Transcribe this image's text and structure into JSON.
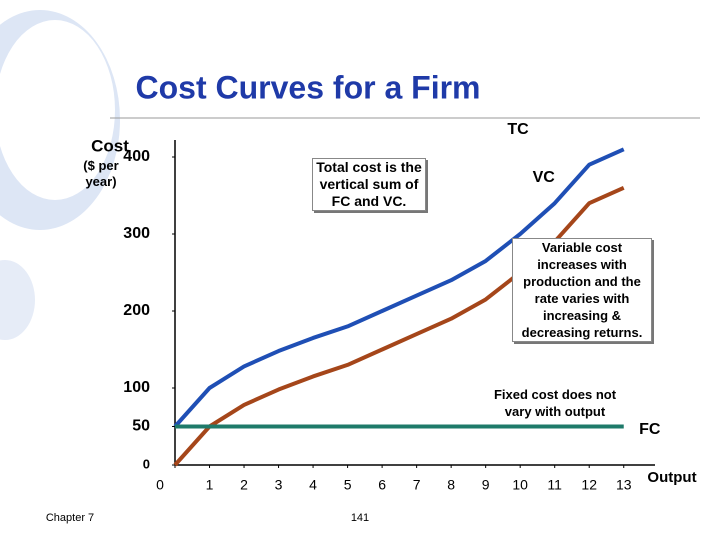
{
  "chart_data": {
    "type": "line",
    "title": "Cost Curves for a Firm",
    "y_label": "Cost",
    "y_unit": "($ per year)",
    "x_label": "Output",
    "x": [
      0,
      1,
      2,
      3,
      4,
      5,
      6,
      7,
      8,
      9,
      10,
      11,
      12,
      13
    ],
    "series": [
      {
        "name": "TC",
        "color": "#1f4fb5",
        "values": [
          50,
          100,
          128,
          148,
          165,
          180,
          200,
          220,
          240,
          265,
          300,
          340,
          390,
          410
        ]
      },
      {
        "name": "VC",
        "color": "#a5461a",
        "values": [
          0,
          50,
          78,
          98,
          115,
          130,
          150,
          170,
          190,
          215,
          250,
          290,
          340,
          360
        ]
      },
      {
        "name": "FC",
        "color": "#1e7a6a",
        "values": [
          50,
          50,
          50,
          50,
          50,
          50,
          50,
          50,
          50,
          50,
          50,
          50,
          50,
          50
        ]
      }
    ],
    "xlim": [
      0,
      13.5
    ],
    "xticks": [
      0,
      1,
      2,
      3,
      4,
      5,
      6,
      7,
      8,
      9,
      10,
      11,
      12,
      13
    ],
    "ylim": [
      0,
      400
    ],
    "yticks": [
      0,
      50,
      100,
      200,
      300,
      400
    ],
    "grid": false,
    "annotations": [
      "Total cost is the vertical sum of FC and VC.",
      "Variable cost increases with production and the rate varies with increasing & decreasing returns.",
      "Fixed cost does not vary with output"
    ],
    "footer_left": "Chapter 7",
    "page_number": "141"
  }
}
